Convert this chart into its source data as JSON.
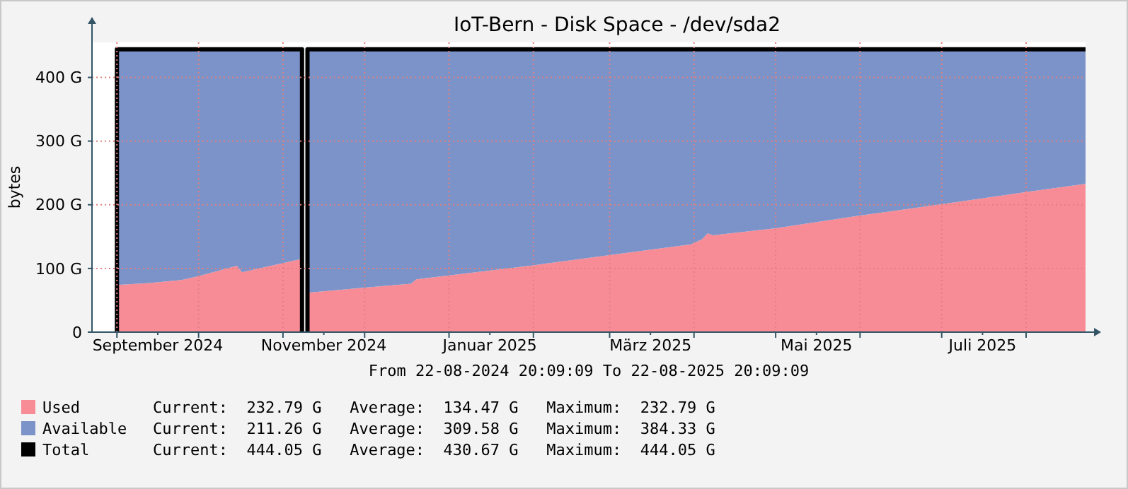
{
  "chart_data": {
    "type": "area",
    "title": "IoT-Bern - Disk Space - /dev/sda2",
    "ylabel": "bytes",
    "stacked": true,
    "grid": true,
    "legend": "bottom",
    "x": [
      "2024-09-01",
      "2024-09-13",
      "2024-09-25",
      "2024-10-01",
      "2024-10-15",
      "2024-10-17",
      "2024-11-08",
      "2024-11-09",
      "2024-11-10",
      "2024-12-07",
      "2024-12-18",
      "2024-12-20",
      "2025-01-01",
      "2025-02-01",
      "2025-03-01",
      "2025-03-31",
      "2025-04-04",
      "2025-04-06",
      "2025-04-08",
      "2025-05-01",
      "2025-06-01",
      "2025-07-01",
      "2025-08-01",
      "2025-08-22T20:09"
    ],
    "series": [
      {
        "name": "Used",
        "color": "#f88c96",
        "values": [
          74,
          77,
          82,
          88,
          104,
          94,
          115,
          null,
          62,
          72,
          76,
          83,
          89,
          105,
          121,
          138,
          146,
          155,
          152,
          163,
          183,
          201,
          220,
          232.79
        ]
      },
      {
        "name": "Available",
        "color": "#7b93c8",
        "values": [
          370.05,
          367.05,
          362.05,
          356.05,
          340.05,
          350.05,
          329.05,
          null,
          382.05,
          372.05,
          368.05,
          361.05,
          355.05,
          339.05,
          323.05,
          306.05,
          298.05,
          289.05,
          292.05,
          281.05,
          261.05,
          243.05,
          224.05,
          211.26
        ]
      },
      {
        "name": "Total",
        "type": "line",
        "color": "#000000",
        "x": [
          "2024-09-01",
          "2024-09-01",
          "2024-11-08",
          "2024-11-08",
          "2024-11-09",
          "2024-11-10",
          "2024-11-10",
          "2025-08-22T20:09"
        ],
        "values": [
          0,
          444.05,
          444.05,
          0,
          null,
          0,
          444.05,
          444.05
        ]
      }
    ],
    "xlim": [
      "2024-08-22T20:09",
      "2025-08-22T20:09"
    ],
    "xticks": [
      {
        "value": "2024-09-01",
        "label": null
      },
      {
        "value": "2024-09-16",
        "label": "September 2024"
      },
      {
        "value": "2024-10-01",
        "label": null
      },
      {
        "value": "2024-11-01",
        "label": null
      },
      {
        "value": "2024-11-16",
        "label": "November 2024"
      },
      {
        "value": "2024-12-01",
        "label": null
      },
      {
        "value": "2025-01-01",
        "label": null
      },
      {
        "value": "2025-01-16",
        "label": "Januar 2025"
      },
      {
        "value": "2025-02-01",
        "label": null
      },
      {
        "value": "2025-03-01",
        "label": null
      },
      {
        "value": "2025-03-16",
        "label": "März 2025"
      },
      {
        "value": "2025-04-01",
        "label": null
      },
      {
        "value": "2025-05-01",
        "label": null
      },
      {
        "value": "2025-05-16",
        "label": "Mai 2025"
      },
      {
        "value": "2025-06-01",
        "label": null
      },
      {
        "value": "2025-07-01",
        "label": null
      },
      {
        "value": "2025-07-16",
        "label": "Juli 2025"
      },
      {
        "value": "2025-08-01",
        "label": null
      }
    ],
    "ylim": [
      0,
      455
    ],
    "yticks": [
      0,
      {
        "value": 100,
        "label": "100 G"
      },
      {
        "value": 200,
        "label": "200 G"
      },
      {
        "value": 300,
        "label": "300 G"
      },
      {
        "value": 400,
        "label": "400 G"
      }
    ],
    "annotations": [
      "From 22-08-2024 20:09:09 To 22-08-2025 20:09:09",
      "Current:  232.79 G   Average:  134.47 G   Maximum:  232.79 G",
      "Current:  211.26 G   Average:  309.58 G   Maximum:  384.33 G",
      "Current:  444.05 G   Average:  430.67 G   Maximum:  444.05 G"
    ]
  }
}
